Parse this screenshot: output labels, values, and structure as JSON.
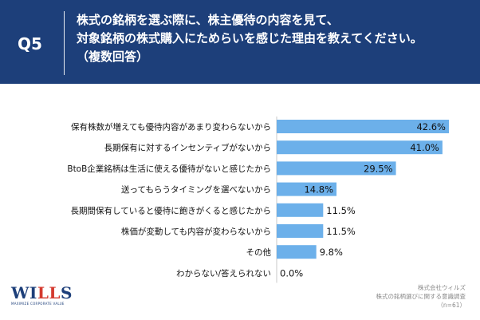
{
  "header": {
    "qnum": "Q5",
    "lines": [
      "株式の銘柄を選ぶ際に、株主優待の内容を見て、",
      "対象銘柄の株式購入にためらいを感じた理由を教えてください。",
      "（複数回答）"
    ]
  },
  "chart_data": {
    "type": "bar",
    "orientation": "horizontal",
    "categories": [
      "保有株数が増えても優待内容があまり変わらないから",
      "長期保有に対するインセンティブがないから",
      "BtoB企業銘柄は生活に使える優待がないと感じたから",
      "送ってもらうタイミングを選べないから",
      "長期間保有していると優待に飽きがくると感じたから",
      "株価が変動しても内容が変わらないから",
      "その他",
      "わからない/答えられない"
    ],
    "values": [
      42.6,
      41.0,
      29.5,
      14.8,
      11.5,
      11.5,
      9.8,
      0.0
    ],
    "labels": [
      "42.6%",
      "41.0%",
      "29.5%",
      "14.8%",
      "11.5%",
      "11.5%",
      "9.8%",
      "0.0%"
    ],
    "xlim": [
      0,
      42.6
    ],
    "title": "",
    "xlabel": "",
    "ylabel": "",
    "bar_color": "#6cb0ea",
    "grid": false
  },
  "logo": {
    "text_a": "WI",
    "text_b": "LL",
    "text_c": "S",
    "tagline": "MAXIMIZE CORPORATE VALUE"
  },
  "source": {
    "company": "株式会社ウィルズ",
    "survey": "株式の銘柄選びに関する意識調査",
    "n": "（n=61）"
  },
  "colors": {
    "header_bg": "#1d3f7a",
    "bar": "#6cb0ea",
    "logo_red": "#d43a2f"
  }
}
